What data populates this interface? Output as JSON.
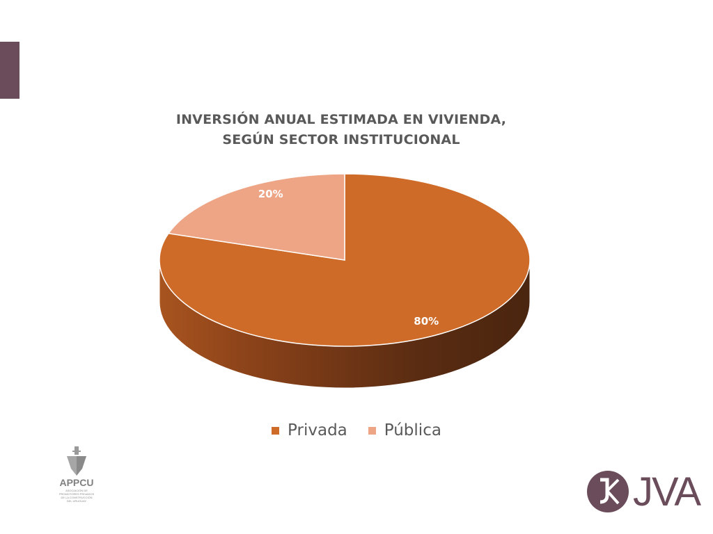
{
  "chart_data": {
    "type": "pie",
    "title_line1": "INVERSIÓN ANUAL ESTIMADA EN VIVIENDA,",
    "title_line2": "SEGÚN SECTOR INSTITUCIONAL",
    "categories": [
      "Privada",
      "Pública"
    ],
    "values": [
      80,
      20
    ],
    "data_labels": [
      "80%",
      "20%"
    ],
    "colors": [
      "#cf6b28",
      "#eda585"
    ],
    "legend_position": "bottom",
    "style": "3d"
  },
  "logos": {
    "appcu_name": "APPCU",
    "appcu_subtitle": [
      "ASOCIACIÓN DE",
      "PROMOTORES PRIVADOS",
      "DE LA CONSTRUCCIÓN",
      "DEL URUGUAY"
    ],
    "jva_text": "JVA"
  },
  "colors": {
    "accent": "#6b4c5b"
  }
}
